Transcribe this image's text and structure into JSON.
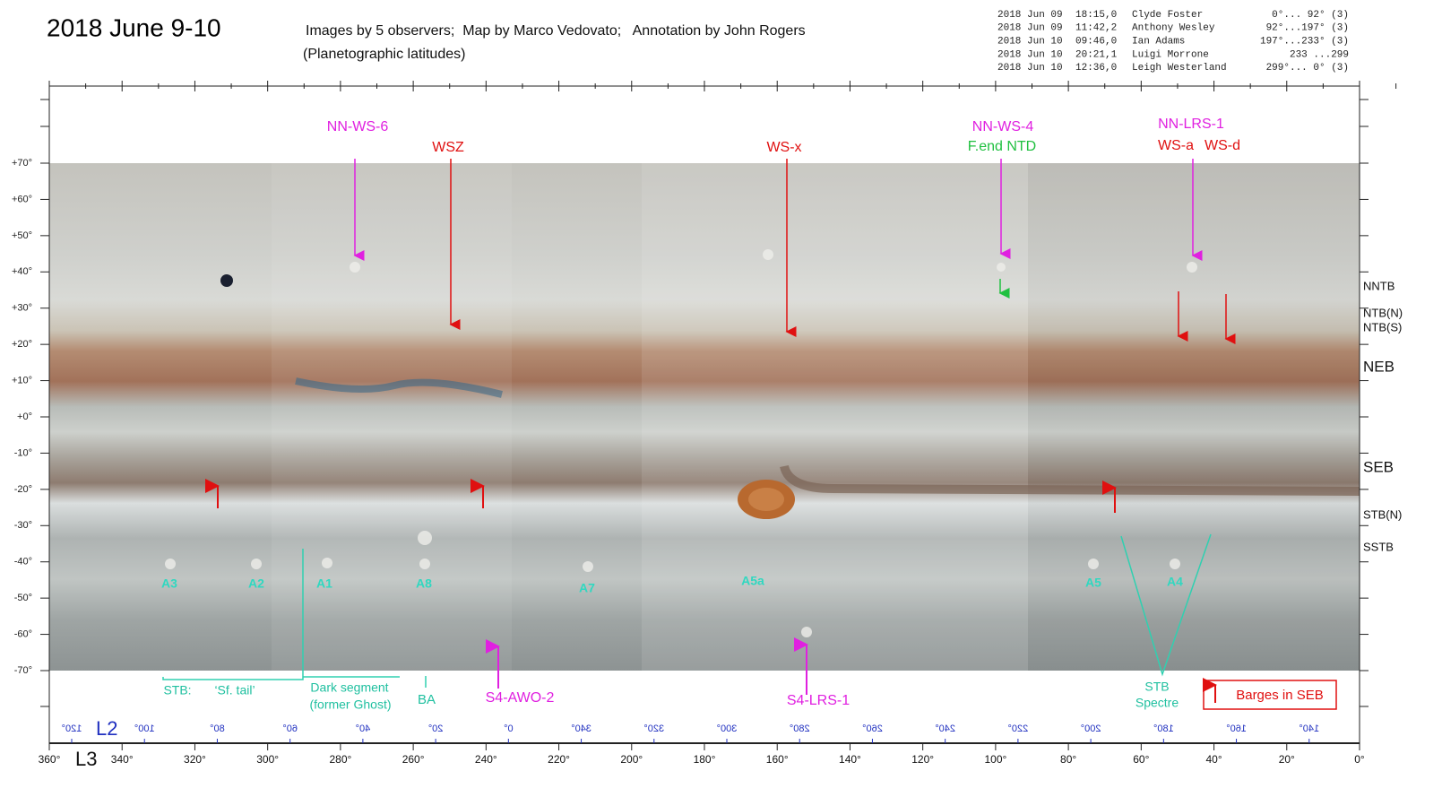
{
  "header": {
    "title": "2018 June 9-10",
    "credits": "Images by 5 observers;  Map by Marco Vedovato;   Annotation by John Rogers",
    "subtitle": "(Planetographic latitudes)"
  },
  "observations": [
    [
      "2018 Jun 09",
      "18:15,0",
      "Clyde Foster",
      "0°... 92° (3)"
    ],
    [
      "2018 Jun 09",
      "11:42,2",
      "Anthony Wesley",
      "92°...197° (3)"
    ],
    [
      "2018 Jun 10",
      "09:46,0",
      "Ian Adams",
      "197°...233° (3)"
    ],
    [
      "2018 Jun 10",
      "20:21,1",
      "Luigi Morrone",
      "233 ...299"
    ],
    [
      "2018 Jun 10",
      "12:36,0",
      "Leigh Westerland",
      "299°... 0° (3)"
    ]
  ],
  "latitude_labels": [
    "+70°",
    "+60°",
    "+50°",
    "+40°",
    "+30°",
    "+20°",
    "+10°",
    "+0°",
    "-10°",
    "-20°",
    "-30°",
    "-40°",
    "-50°",
    "-60°",
    "-70°"
  ],
  "belt_labels": [
    "NNTB",
    "NTB(N)",
    "NTB(S)",
    "NEB",
    "SEB",
    "STB(N)",
    "SSTB"
  ],
  "l2": {
    "name": "L2",
    "labels": [
      "120°",
      "100°",
      "80°",
      "60°",
      "40°",
      "20°",
      "0°",
      "340°",
      "320°",
      "300°",
      "280°",
      "260°",
      "240°",
      "220°",
      "200°",
      "180°",
      "160°",
      "140°"
    ]
  },
  "l3": {
    "name": "L3",
    "labels": [
      "360°",
      "340°",
      "320°",
      "300°",
      "280°",
      "260°",
      "240°",
      "220°",
      "200°",
      "180°",
      "160°",
      "140°",
      "120°",
      "100°",
      "80°",
      "60°",
      "40°",
      "20°",
      "0°"
    ]
  },
  "annotations": [
    "NN-WS-6",
    "WSZ",
    "WS-x",
    "NN-WS-4",
    "F.end NTD",
    "NN-LRS-1",
    "WS-a",
    "WS-d",
    "A3",
    "A2",
    "A1",
    "A8",
    "A7",
    "A5a",
    "A5",
    "A4",
    "STB:",
    "‘Sf. tail’",
    "Dark segment",
    "(former Ghost)",
    "BA",
    "S4-AWO-2",
    "S4-LRS-1",
    "STB",
    "Spectre",
    "Barges in SEB"
  ]
}
